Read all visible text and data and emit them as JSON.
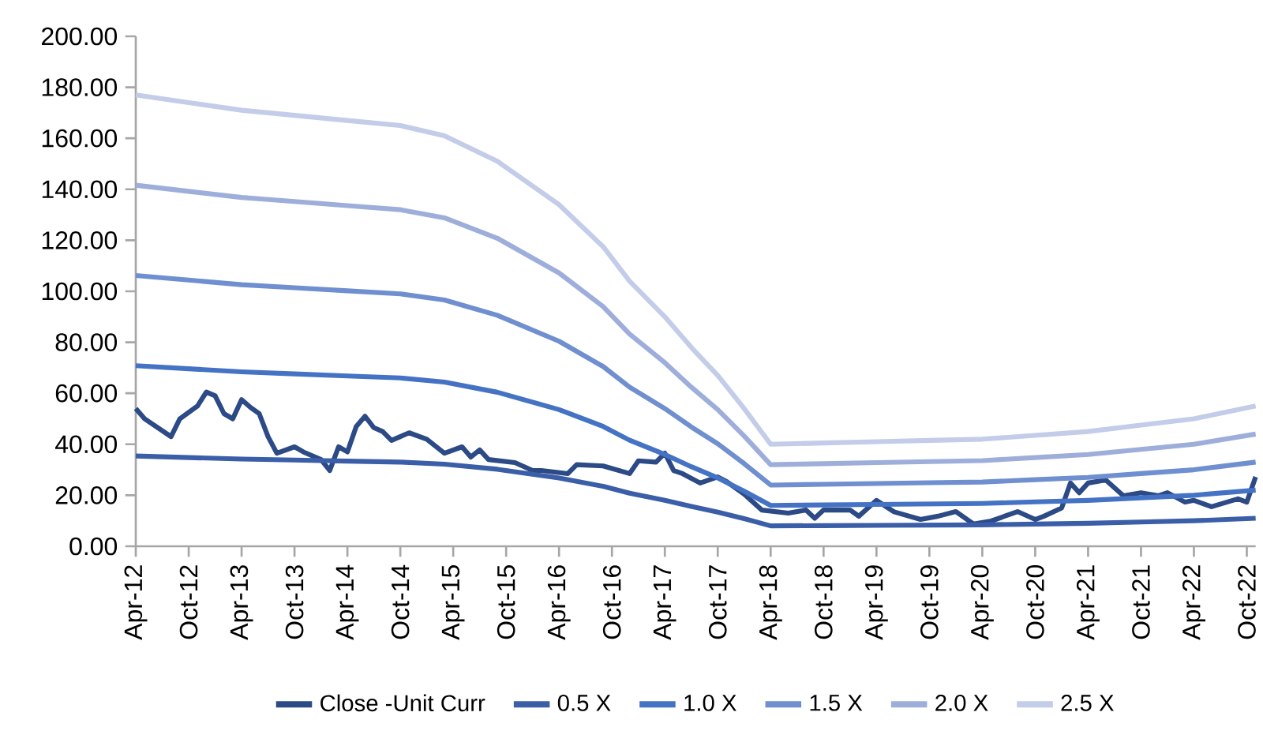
{
  "chart_data": {
    "type": "line",
    "x": [
      "2012-04",
      "2012-10",
      "2013-04",
      "2013-10",
      "2014-04",
      "2014-10",
      "2015-03",
      "2015-09",
      "2016-04",
      "2016-09",
      "2016-12",
      "2017-04",
      "2017-07",
      "2017-10",
      "2018-01",
      "2018-04",
      "2018-10",
      "2019-04",
      "2019-10",
      "2020-04",
      "2020-10",
      "2021-04",
      "2021-10",
      "2022-04",
      "2022-11"
    ],
    "xlim": [
      "2012-04",
      "2022-11"
    ],
    "xticks": [
      {
        "value": "2012-04",
        "label": "Apr-12"
      },
      {
        "value": "2012-10",
        "label": "Oct-12"
      },
      {
        "value": "2013-04",
        "label": "Apr-13"
      },
      {
        "value": "2013-10",
        "label": "Oct-13"
      },
      {
        "value": "2014-04",
        "label": "Apr-14"
      },
      {
        "value": "2014-10",
        "label": "Oct-14"
      },
      {
        "value": "2015-04",
        "label": "Apr-15"
      },
      {
        "value": "2015-10",
        "label": "Oct-15"
      },
      {
        "value": "2016-04",
        "label": "Apr-16"
      },
      {
        "value": "2016-10",
        "label": "Oct-16"
      },
      {
        "value": "2017-04",
        "label": "Apr-17"
      },
      {
        "value": "2017-10",
        "label": "Oct-17"
      },
      {
        "value": "2018-04",
        "label": "Apr-18"
      },
      {
        "value": "2018-10",
        "label": "Oct-18"
      },
      {
        "value": "2019-04",
        "label": "Apr-19"
      },
      {
        "value": "2019-10",
        "label": "Oct-19"
      },
      {
        "value": "2020-04",
        "label": "Apr-20"
      },
      {
        "value": "2020-10",
        "label": "Oct-20"
      },
      {
        "value": "2021-04",
        "label": "Apr-21"
      },
      {
        "value": "2021-10",
        "label": "Oct-21"
      },
      {
        "value": "2022-04",
        "label": "Apr-22"
      },
      {
        "value": "2022-10",
        "label": "Oct-22"
      }
    ],
    "ylim": [
      0,
      200
    ],
    "yticks": [
      {
        "value": 0,
        "label": "0.00"
      },
      {
        "value": 20,
        "label": "20.00"
      },
      {
        "value": 40,
        "label": "40.00"
      },
      {
        "value": 60,
        "label": "60.00"
      },
      {
        "value": 80,
        "label": "80.00"
      },
      {
        "value": 100,
        "label": "100.00"
      },
      {
        "value": 120,
        "label": "120.00"
      },
      {
        "value": 140,
        "label": "140.00"
      },
      {
        "value": 160,
        "label": "160.00"
      },
      {
        "value": 180,
        "label": "180.00"
      },
      {
        "value": 200,
        "label": "200.00"
      }
    ],
    "grid": false,
    "legend": "bottom",
    "marker": "none",
    "line_style": "solid",
    "series": [
      {
        "name": "Close -Unit Curr",
        "color": "#2b4a86",
        "x": [
          "2012-04",
          "2012-05",
          "2012-08",
          "2012-09",
          "2012-11",
          "2012-12",
          "2013-01",
          "2013-02",
          "2013-03",
          "2013-04",
          "2013-05",
          "2013-06",
          "2013-07",
          "2013-08",
          "2013-10",
          "2013-11",
          "2014-01",
          "2014-02",
          "2014-03",
          "2014-04",
          "2014-05",
          "2014-06",
          "2014-07",
          "2014-08",
          "2014-09",
          "2014-11",
          "2015-01",
          "2015-03",
          "2015-05",
          "2015-06",
          "2015-07",
          "2015-08",
          "2015-11",
          "2016-01",
          "2016-02",
          "2016-05",
          "2016-06",
          "2016-09",
          "2016-12",
          "2017-01",
          "2017-03",
          "2017-04",
          "2017-05",
          "2017-06",
          "2017-08",
          "2017-10",
          "2017-11",
          "2018-01",
          "2018-03",
          "2018-06",
          "2018-08",
          "2018-09",
          "2018-10",
          "2019-01",
          "2019-02",
          "2019-04",
          "2019-06",
          "2019-09",
          "2019-11",
          "2020-01",
          "2020-03",
          "2020-05",
          "2020-08",
          "2020-10",
          "2020-11",
          "2021-01",
          "2021-02",
          "2021-03",
          "2021-04",
          "2021-06",
          "2021-08",
          "2021-10",
          "2021-12",
          "2022-01",
          "2022-03",
          "2022-04",
          "2022-06",
          "2022-09",
          "2022-10",
          "2022-11"
        ],
        "values": [
          54,
          50,
          43,
          50,
          55,
          60.5,
          59,
          52,
          50,
          57.5,
          54.5,
          52,
          43,
          36.5,
          39,
          37,
          34,
          29.7,
          39,
          37,
          47,
          51,
          46.5,
          45,
          41.5,
          44.5,
          42,
          36.5,
          39,
          35,
          37.8,
          34,
          32.8,
          29.7,
          29.7,
          28.5,
          32,
          31.5,
          28.5,
          33.5,
          33,
          36.5,
          29.7,
          28.5,
          24.8,
          27.2,
          25.4,
          20.4,
          14.2,
          13,
          14.2,
          11,
          14.2,
          14.2,
          11.8,
          18,
          13.5,
          10.5,
          11.8,
          13.6,
          8.7,
          9.9,
          13.6,
          10.5,
          11.8,
          15,
          24.8,
          21,
          24.8,
          26,
          19.8,
          21,
          19.8,
          21,
          17.3,
          18,
          15.5,
          18.6,
          17.3,
          27.2
        ]
      },
      {
        "name": "0.5 X",
        "color": "#3a5ea8",
        "values": [
          35.4,
          34.8,
          34.2,
          33.8,
          33.4,
          33.0,
          32.2,
          30.2,
          26.8,
          23.5,
          20.8,
          18.0,
          15.6,
          13.4,
          10.8,
          8.0,
          8.1,
          8.2,
          8.3,
          8.4,
          8.7,
          9.0,
          9.5,
          10.0,
          11.0
        ]
      },
      {
        "name": "1.0 X",
        "color": "#4472c4",
        "values": [
          70.8,
          69.6,
          68.4,
          67.6,
          66.8,
          66.0,
          64.4,
          60.4,
          53.6,
          47.0,
          41.6,
          36.0,
          31.2,
          26.8,
          21.6,
          16.0,
          16.2,
          16.4,
          16.6,
          16.8,
          17.4,
          18.0,
          19.0,
          20.0,
          22.0
        ]
      },
      {
        "name": "1.5 X",
        "color": "#6f8fd0",
        "values": [
          106.2,
          104.4,
          102.6,
          101.4,
          100.2,
          99.0,
          96.6,
          90.6,
          80.4,
          70.5,
          62.4,
          54.0,
          46.8,
          40.2,
          32.4,
          24.0,
          24.3,
          24.6,
          24.9,
          25.2,
          26.1,
          27.0,
          28.5,
          30.0,
          33.0
        ]
      },
      {
        "name": "2.0 X",
        "color": "#9eaedb",
        "values": [
          141.6,
          139.2,
          136.8,
          135.2,
          133.6,
          132.0,
          128.8,
          120.8,
          107.2,
          94.0,
          83.2,
          72.0,
          62.4,
          53.6,
          43.2,
          32.0,
          32.4,
          32.8,
          33.2,
          33.6,
          34.8,
          36.0,
          38.0,
          40.0,
          44.0
        ]
      },
      {
        "name": "2.5 X",
        "color": "#c3cce8",
        "values": [
          177.0,
          174.0,
          171.0,
          169.0,
          167.0,
          165.0,
          161.0,
          151.0,
          134.0,
          117.5,
          104.0,
          90.0,
          78.0,
          67.0,
          54.0,
          40.0,
          40.5,
          41.0,
          41.5,
          42.0,
          43.5,
          45.0,
          47.5,
          50.0,
          55.0
        ]
      }
    ]
  }
}
